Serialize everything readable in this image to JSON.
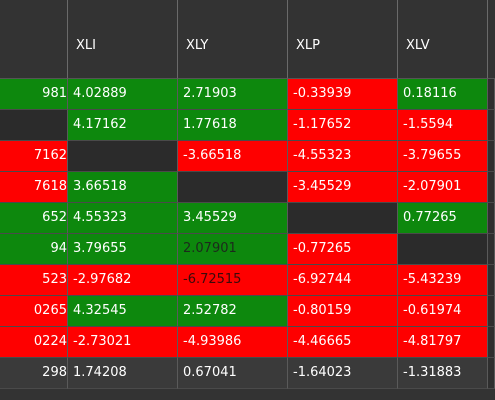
{
  "table": {
    "headers": [
      "XLI",
      "XLY",
      "XLP",
      "XLV"
    ],
    "palette": {
      "green": {
        "bg": "#0d880d",
        "fg": "#ffffff"
      },
      "green-dim": {
        "bg": "#0d880d",
        "fg": "#1c2a1c"
      },
      "red": {
        "bg": "#fe0000",
        "fg": "#ffffff"
      },
      "red-dim": {
        "bg": "#fe0000",
        "fg": "#3a0a0a"
      },
      "empty": {
        "bg": "#2b2b2b",
        "fg": "#ffffff"
      },
      "total": {
        "bg": "#3a3a3a",
        "fg": "#ffffff"
      }
    },
    "rows": [
      {
        "cells": [
          "981",
          "4.02889",
          "2.71903",
          "-0.33939",
          "0.18116"
        ],
        "fills": [
          "green",
          "green",
          "green",
          "red",
          "green"
        ]
      },
      {
        "cells": [
          null,
          "4.17162",
          "1.77618",
          "-1.17652",
          "-1.5594"
        ],
        "fills": [
          "empty",
          "green",
          "green",
          "red",
          "red"
        ]
      },
      {
        "cells": [
          "7162",
          null,
          "-3.66518",
          "-4.55323",
          "-3.79655"
        ],
        "fills": [
          "red",
          "empty",
          "red",
          "red",
          "red"
        ]
      },
      {
        "cells": [
          "7618",
          "3.66518",
          null,
          "-3.45529",
          "-2.07901"
        ],
        "fills": [
          "red",
          "green",
          "empty",
          "red",
          "red"
        ]
      },
      {
        "cells": [
          "652",
          "4.55323",
          "3.45529",
          null,
          "0.77265"
        ],
        "fills": [
          "green",
          "green",
          "green",
          "empty",
          "green"
        ]
      },
      {
        "cells": [
          "94",
          "3.79655",
          "2.07901",
          "-0.77265",
          null
        ],
        "fills": [
          "green",
          "green",
          "green-dim",
          "red",
          "empty"
        ]
      },
      {
        "cells": [
          "523",
          "-2.97682",
          "-6.72515",
          "-6.92744",
          "-5.43239"
        ],
        "fills": [
          "red",
          "red",
          "red-dim",
          "red",
          "red"
        ]
      },
      {
        "cells": [
          "0265",
          "4.32545",
          "2.52782",
          "-0.80159",
          "-0.61974"
        ],
        "fills": [
          "red",
          "green",
          "green",
          "red",
          "red"
        ]
      },
      {
        "cells": [
          "0224",
          "-2.73021",
          "-4.93986",
          "-4.46665",
          "-4.81797"
        ],
        "fills": [
          "red",
          "red",
          "red",
          "red",
          "red"
        ]
      },
      {
        "cells": [
          "298",
          "1.74208",
          "0.67041",
          "-1.64023",
          "-1.31883"
        ],
        "fills": [
          "total",
          "total",
          "total",
          "total",
          "total"
        ]
      }
    ]
  }
}
